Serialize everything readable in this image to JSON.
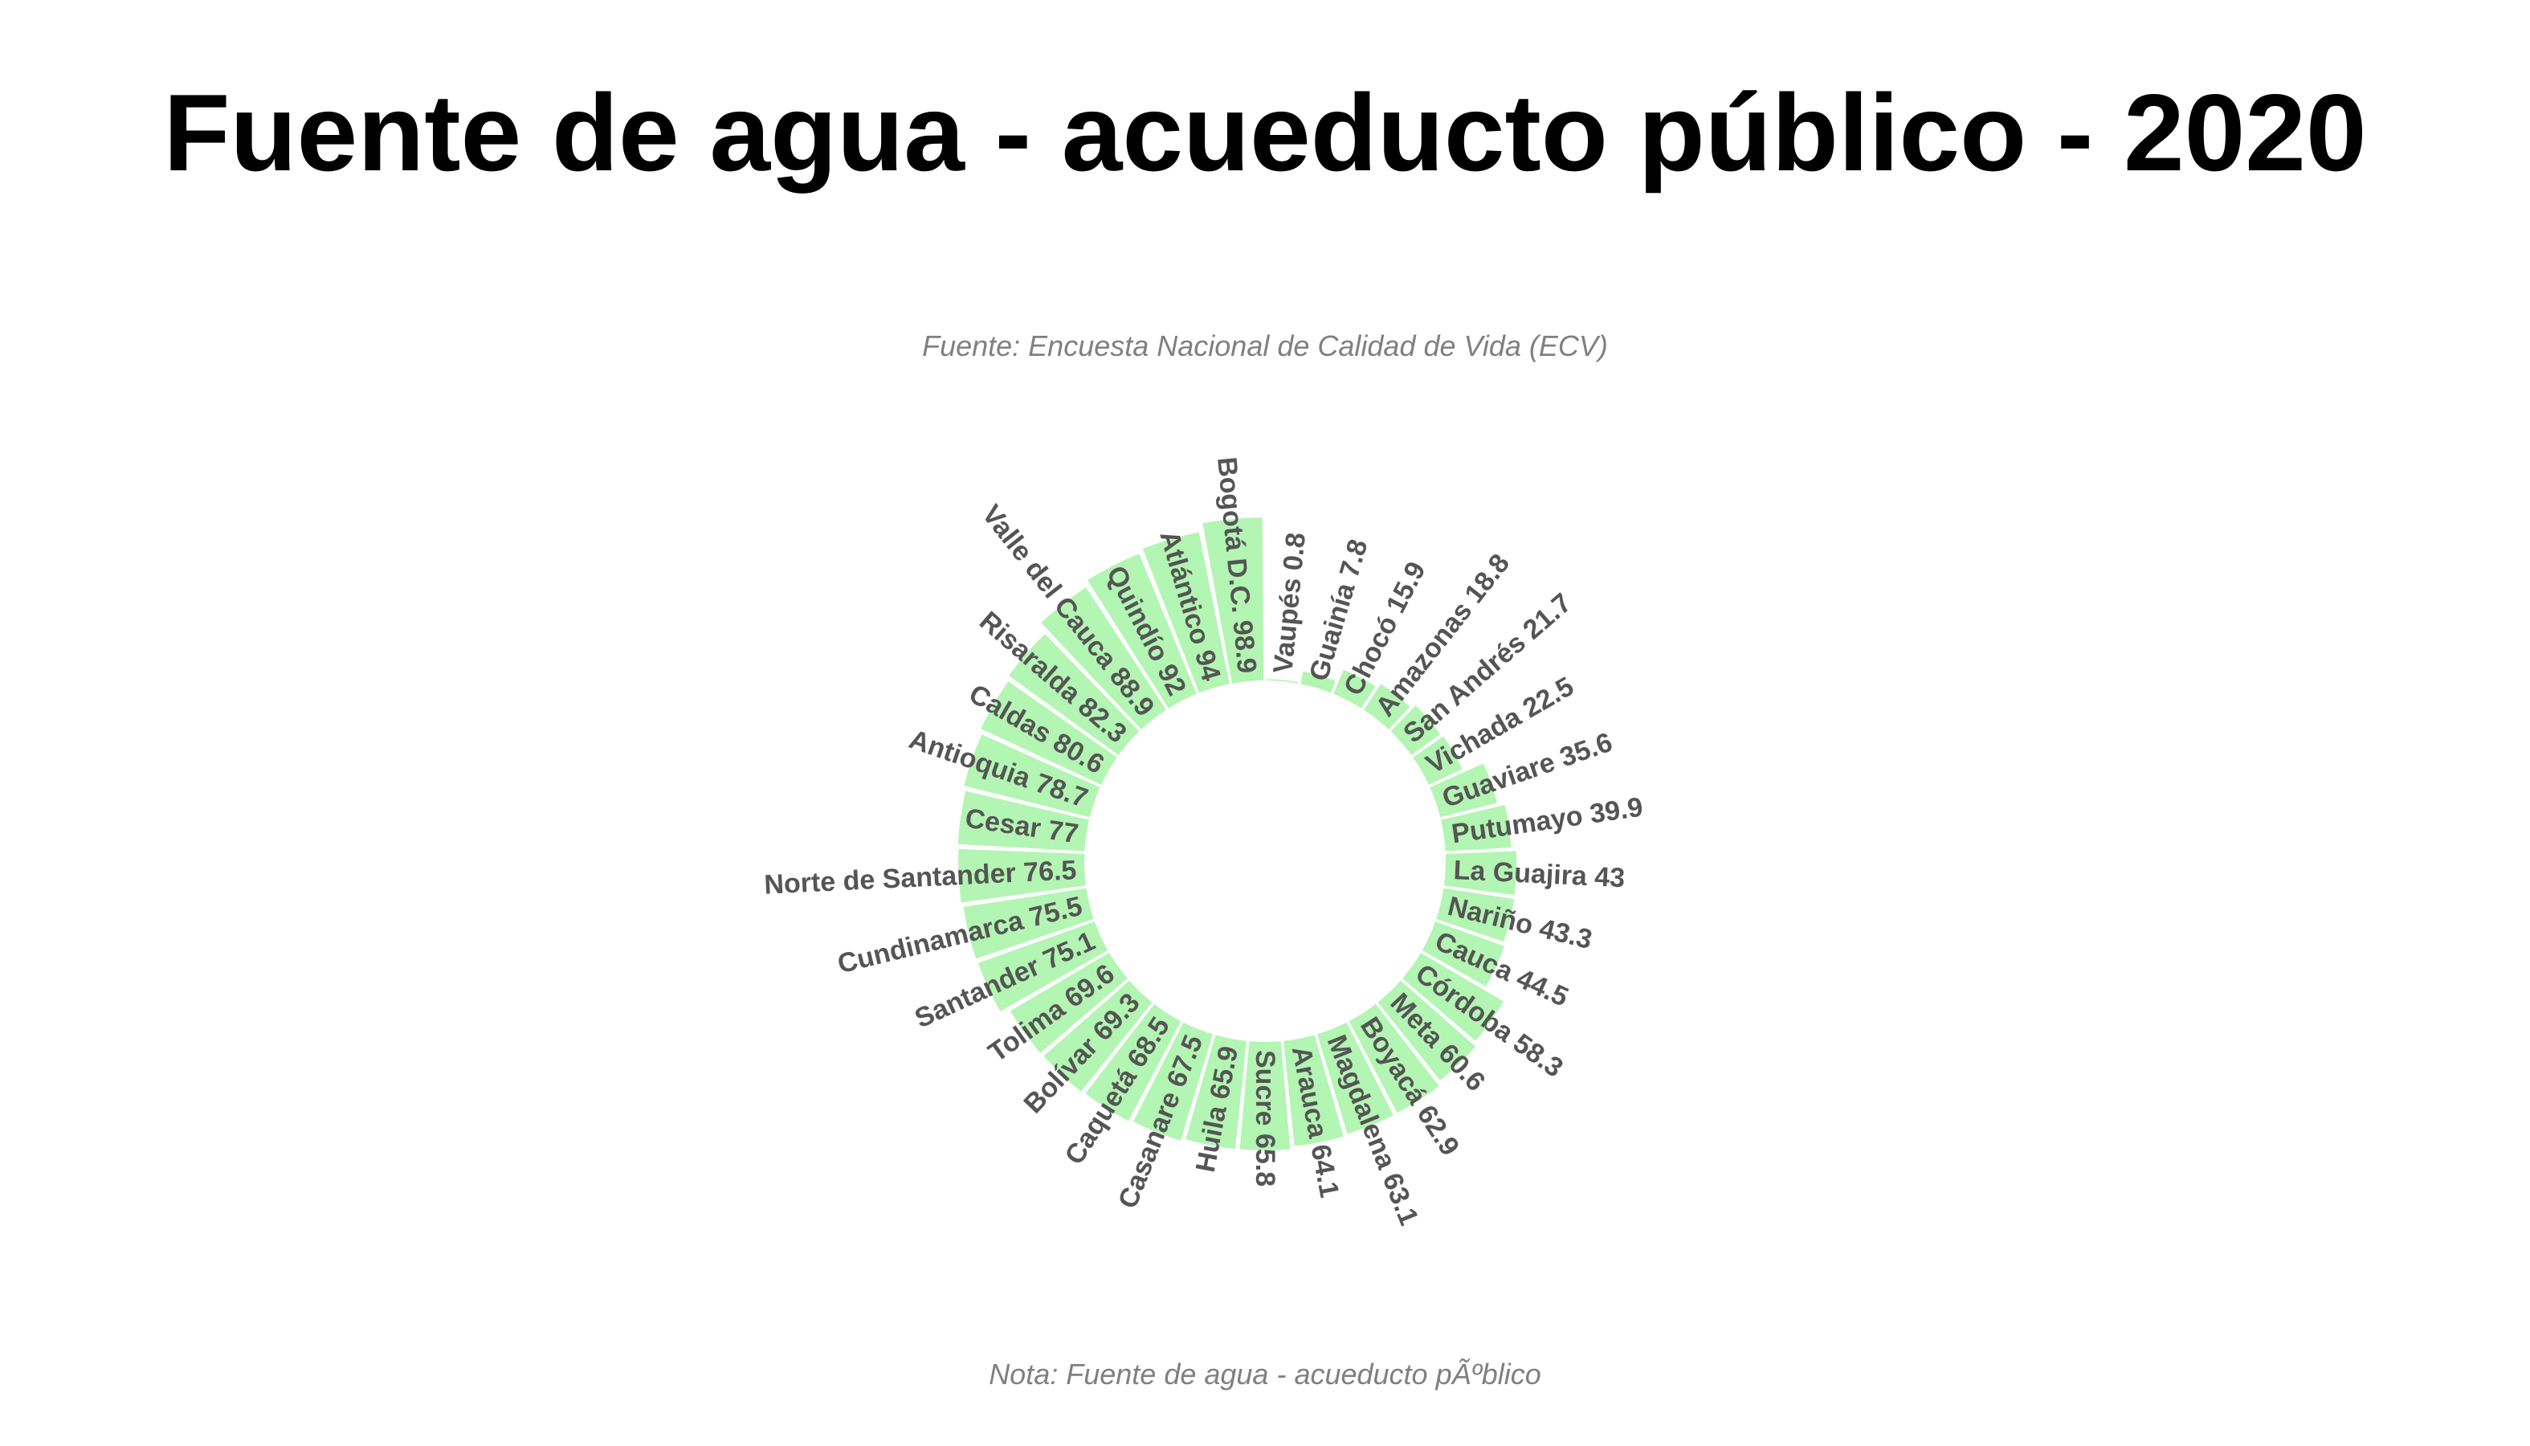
{
  "title": "Fuente de agua - acueducto público - 2020",
  "subtitle": "Fuente: Encuesta Nacional de Calidad de Vida (ECV)",
  "note": "Nota: Fuente de agua - acueducto pÃºblico",
  "colors": {
    "bar": "#b3f5b3",
    "label": "#555555",
    "title": "#000000",
    "caption": "#808080"
  },
  "chart_data": {
    "type": "bar",
    "layout": "circular",
    "title": "Fuente de agua - acueducto público - 2020",
    "categories": [
      "Vaupés",
      "Guainía",
      "Chocó",
      "Amazonas",
      "San Andrés",
      "Vichada",
      "Guaviare",
      "Putumayo",
      "La Guajira",
      "Nariño",
      "Cauca",
      "Córdoba",
      "Meta",
      "Boyacá",
      "Magdalena",
      "Arauca",
      "Sucre",
      "Huila",
      "Casanare",
      "Caquetá",
      "Bolívar",
      "Tolima",
      "Santander",
      "Cundinamarca",
      "Norte de Santander",
      "Cesar",
      "Antioquia",
      "Caldas",
      "Risaralda",
      "Valle del Cauca",
      "Quindío",
      "Atlántico",
      "Bogotá D.C."
    ],
    "values": [
      0.8,
      7.8,
      15.9,
      18.8,
      21.7,
      22.5,
      35.6,
      39.9,
      43,
      43.3,
      44.5,
      58.3,
      60.6,
      62.9,
      63.1,
      64.1,
      65.8,
      65.9,
      67.5,
      68.5,
      69.3,
      69.6,
      75.1,
      75.5,
      76.5,
      77,
      78.7,
      80.6,
      82.3,
      88.9,
      92,
      94,
      98.9
    ],
    "labels": [
      "Vaupés 0.8",
      "Guainía 7.8",
      "Chocó 15.9",
      "Amazonas 18.8",
      "San Andrés 21.7",
      "Vichada 22.5",
      "Guaviare 35.6",
      "Putumayo 39.9",
      "La Guajira 43",
      "Nariño 43.3",
      "Cauca 44.5",
      "Córdoba 58.3",
      "Meta 60.6",
      "Boyacá 62.9",
      "Magdalena 63.1",
      "Arauca 64.1",
      "Sucre 65.8",
      "Huila 65.9",
      "Casanare 67.5",
      "Caquetá 68.5",
      "Bolívar 69.3",
      "Tolima 69.6",
      "Santander 75.1",
      "Cundinamarca 75.5",
      "Norte de Santander 76.5",
      "Cesar 77",
      "Antioquia 78.7",
      "Caldas 80.6",
      "Risaralda 82.3",
      "Valle del Cauca 88.9",
      "Quindío 92",
      "Atlántico 94",
      "Bogotá D.C. 98.9"
    ],
    "ylim": [
      0,
      100
    ],
    "grid": false,
    "legend": "none"
  }
}
